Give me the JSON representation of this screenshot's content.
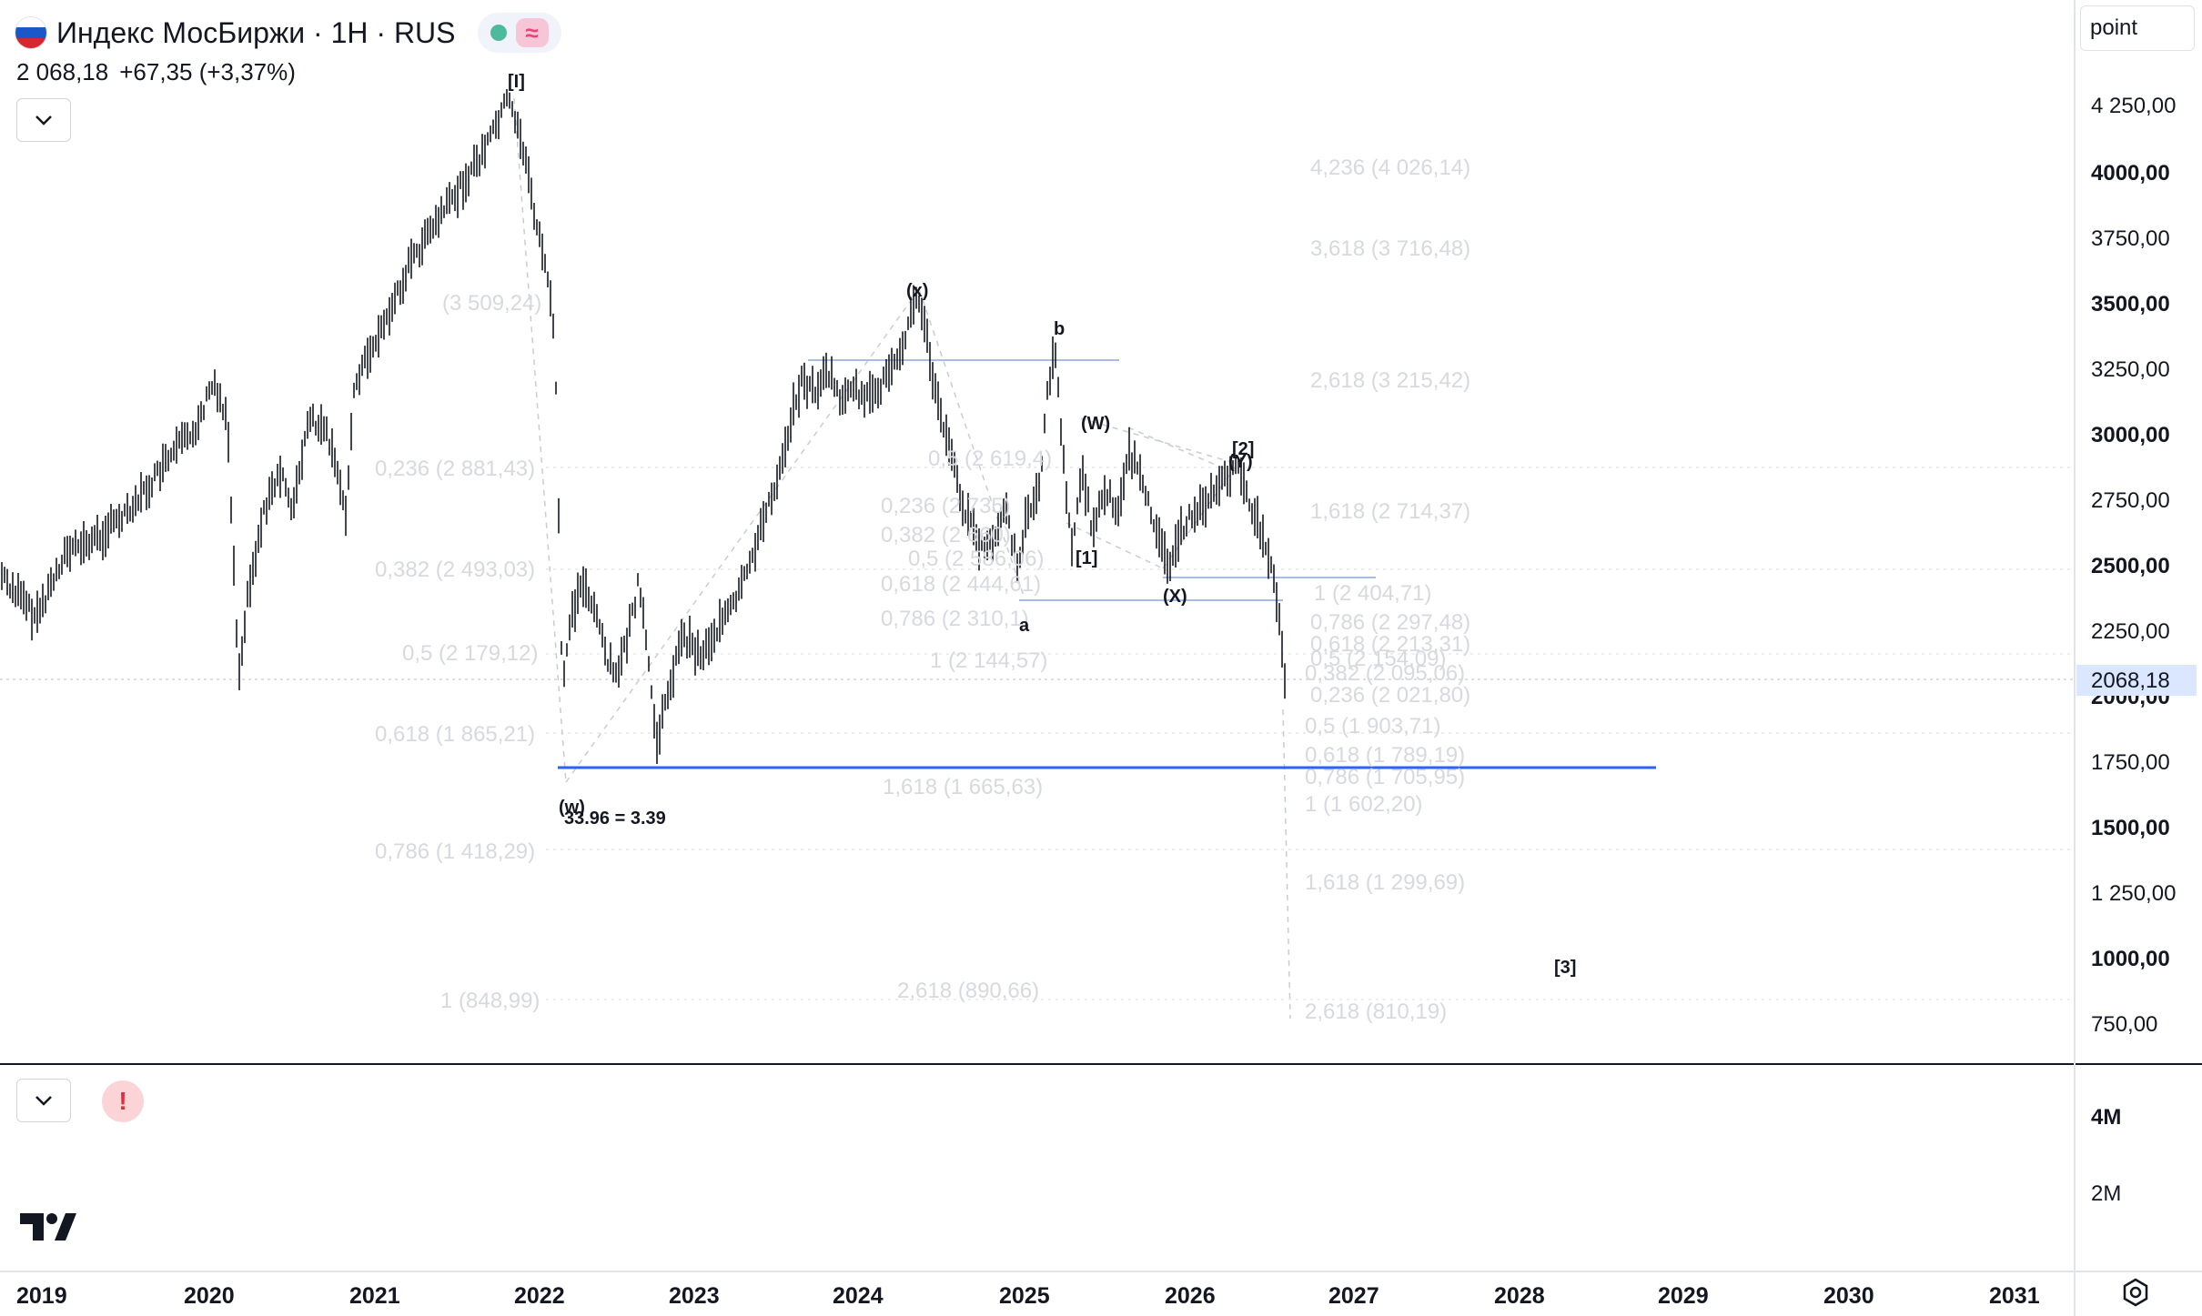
{
  "header": {
    "title": "Индекс МосБиржи · 1H · RUS",
    "price": "2 068,18",
    "change": "+67,35 (+3,37%)",
    "status_dot_color": "#4dbb9b",
    "wave_icon": "≈"
  },
  "controls": {
    "collapse_icon": "chevron-down-icon",
    "volume_collapse_icon": "chevron-down-icon",
    "alert_icon": "!",
    "scale_mode": "point",
    "settings_icon": "gear-icon"
  },
  "price_axis": {
    "labels": [
      "4 250,00",
      "4000,00",
      "3750,00",
      "3500,00",
      "3250,00",
      "3000,00",
      "2750,00",
      "2500,00",
      "2250,00",
      "2000,00",
      "1750,00",
      "1500,00",
      "1 250,00",
      "1000,00",
      "750,00"
    ],
    "current_price": "2068,18",
    "current_price_color": "#2962ff"
  },
  "volume_axis": {
    "labels": [
      "4M",
      "2M"
    ]
  },
  "time_axis": {
    "labels": [
      "2019",
      "2020",
      "2021",
      "2022",
      "2023",
      "2024",
      "2025",
      "2026",
      "2027",
      "2028",
      "2029",
      "2030",
      "2031"
    ]
  },
  "wave_labels": [
    "[I]",
    "(x)",
    "b",
    "(W)",
    "[2]",
    "(Y)",
    "[1]",
    "(X)",
    "a",
    "(w)",
    "[3]"
  ],
  "annotations": {
    "ratio_note": "33.96 = 3.39"
  },
  "fib_labels": {
    "left": [
      "(3 509,24)",
      "0,236 (2 881,43)",
      "0,382 (2 493,03)",
      "0,5 (2 179,12)",
      "0,618 (1 865,21)",
      "0,786 (1 418,29)",
      "1 (848,99)"
    ],
    "middle": [
      "0,5 (2 619,4)",
      "0,236 (2 735)",
      "0,382 (2 660)",
      "0,5 (2 586,06)",
      "0,618 (2 444,61)",
      "0,786 (2 310,1)",
      "1 (2 144,57)",
      "1,618 (1 665,63)",
      "2,618 (890,66)"
    ],
    "right": [
      "4,236 (4 026,14)",
      "3,618 (3 716,48)",
      "2,618 (3 215,42)",
      "1,618 (2 714,37)",
      "1 (2 404,71)",
      "0,786 (2 297,48)",
      "0,618 (2 213,31)",
      "0,5 (2 154,09)",
      "0,382 (2 095,06)",
      "0,236 (2 021,80)",
      "0,5 (1 903,71)",
      "0,618 (1 789,19)",
      "0,786 (1 705,95)",
      "1 (1 602,20)",
      "1,618 (1 299,69)",
      "2,618 (810,19)"
    ]
  },
  "colors": {
    "candle": "#131722",
    "support_line": "#2962ff",
    "box_line": "#a7bde6",
    "fib_text": "#d7d9df"
  }
}
